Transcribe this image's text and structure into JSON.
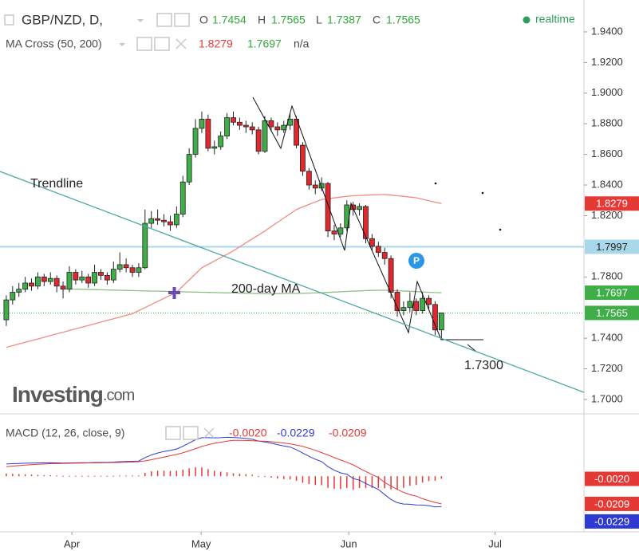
{
  "chart_data": [
    {
      "type": "candlestick",
      "symbol": "GBP/NZD, D,",
      "ohlc_labels": [
        "O",
        "H",
        "L",
        "C"
      ],
      "indicator": "MA Cross (50, 200)",
      "indicator_na": "n/a",
      "status": "realtime",
      "annotations": {
        "trendline": "Trendline",
        "ma_label": "200-day MA",
        "target": "1.7300"
      },
      "logo": [
        "Investing",
        ".com"
      ],
      "up_color": "#3fae49",
      "down_color": "#e0282e",
      "horizontal_line": 1.7997,
      "horizontal_line_color": "#a9d8ea",
      "xlim": [
        -1,
        91.6
      ],
      "xticks": [
        {
          "value": 10.4,
          "label": "Apr"
        },
        {
          "value": 30.9,
          "label": "May"
        },
        {
          "value": 54.3,
          "label": "Jun"
        },
        {
          "value": 77.5,
          "label": "Jul"
        }
      ],
      "ylim": [
        1.6906,
        1.9608
      ],
      "yticks": [
        {
          "value": 1.7,
          "label": "1.7000"
        },
        {
          "value": 1.72,
          "label": "1.7200"
        },
        {
          "value": 1.74,
          "label": "1.7400"
        },
        {
          "value": 1.78,
          "label": "1.7800"
        },
        {
          "value": 1.82,
          "label": "1.8200"
        },
        {
          "value": 1.84,
          "label": "1.8400"
        },
        {
          "value": 1.86,
          "label": "1.8600"
        },
        {
          "value": 1.88,
          "label": "1.8800"
        },
        {
          "value": 1.9,
          "label": "1.9000"
        },
        {
          "value": 1.92,
          "label": "1.9200"
        },
        {
          "value": 1.94,
          "label": "1.9400"
        }
      ],
      "grid": false,
      "open": [
        1.752,
        1.765,
        1.77,
        1.772,
        1.776,
        1.774,
        1.78,
        1.777,
        1.779,
        1.774,
        1.772,
        1.783,
        1.778,
        1.78,
        1.776,
        1.783,
        1.781,
        1.778,
        1.785,
        1.788,
        1.786,
        1.783,
        1.786,
        1.815,
        1.818,
        1.817,
        1.816,
        1.814,
        1.821,
        1.842,
        1.86,
        1.877,
        1.883,
        1.864,
        1.865,
        1.872,
        1.884,
        1.881,
        1.879,
        1.878,
        1.876,
        1.862,
        1.882,
        1.878,
        1.876,
        1.879,
        1.883,
        1.866,
        1.849,
        1.84,
        1.838,
        1.841,
        1.81,
        1.808,
        1.812,
        1.827,
        1.824,
        1.826,
        1.805,
        1.8,
        1.796,
        1.792,
        1.77,
        1.758,
        1.76,
        1.764,
        1.758,
        1.766,
        1.762,
        1.7454
      ],
      "high": [
        1.768,
        1.774,
        1.776,
        1.78,
        1.779,
        1.783,
        1.782,
        1.783,
        1.781,
        1.777,
        1.787,
        1.785,
        1.784,
        1.782,
        1.788,
        1.785,
        1.783,
        1.79,
        1.796,
        1.792,
        1.788,
        1.789,
        1.824,
        1.823,
        1.824,
        1.821,
        1.82,
        1.826,
        1.846,
        1.864,
        1.883,
        1.888,
        1.886,
        1.869,
        1.875,
        1.887,
        1.888,
        1.884,
        1.882,
        1.881,
        1.878,
        1.885,
        1.884,
        1.881,
        1.882,
        1.887,
        1.885,
        1.868,
        1.851,
        1.843,
        1.845,
        1.842,
        1.814,
        1.815,
        1.83,
        1.829,
        1.828,
        1.827,
        1.808,
        1.803,
        1.799,
        1.794,
        1.772,
        1.764,
        1.77,
        1.766,
        1.77,
        1.768,
        1.764,
        1.7565
      ],
      "low": [
        1.748,
        1.762,
        1.767,
        1.77,
        1.771,
        1.772,
        1.774,
        1.775,
        1.77,
        1.766,
        1.77,
        1.775,
        1.776,
        1.773,
        1.774,
        1.778,
        1.775,
        1.776,
        1.783,
        1.783,
        1.78,
        1.78,
        1.785,
        1.812,
        1.814,
        1.813,
        1.81,
        1.812,
        1.819,
        1.84,
        1.858,
        1.874,
        1.862,
        1.86,
        1.863,
        1.87,
        1.879,
        1.876,
        1.874,
        1.873,
        1.86,
        1.861,
        1.875,
        1.872,
        1.874,
        1.876,
        1.864,
        1.846,
        1.837,
        1.834,
        1.836,
        1.806,
        1.804,
        1.806,
        1.81,
        1.82,
        1.82,
        1.802,
        1.797,
        1.793,
        1.788,
        1.766,
        1.754,
        1.755,
        1.757,
        1.755,
        1.756,
        1.759,
        1.742,
        1.7387
      ],
      "close": [
        1.765,
        1.77,
        1.772,
        1.776,
        1.774,
        1.78,
        1.777,
        1.779,
        1.774,
        1.772,
        1.783,
        1.778,
        1.78,
        1.776,
        1.783,
        1.781,
        1.778,
        1.785,
        1.788,
        1.786,
        1.783,
        1.786,
        1.815,
        1.818,
        1.817,
        1.816,
        1.814,
        1.821,
        1.842,
        1.86,
        1.877,
        1.883,
        1.864,
        1.865,
        1.872,
        1.884,
        1.881,
        1.879,
        1.878,
        1.876,
        1.862,
        1.882,
        1.878,
        1.876,
        1.879,
        1.883,
        1.866,
        1.849,
        1.84,
        1.838,
        1.841,
        1.81,
        1.808,
        1.812,
        1.827,
        1.824,
        1.826,
        1.805,
        1.8,
        1.796,
        1.792,
        1.77,
        1.758,
        1.76,
        1.764,
        1.758,
        1.766,
        1.762,
        1.7454,
        1.7565
      ],
      "series": [
        {
          "color": "#f28b82",
          "tag_color": "#e53935",
          "values": [
            1.734,
            1.7351,
            1.7362,
            1.7373,
            1.7384,
            1.7395,
            1.7406,
            1.7417,
            1.7428,
            1.7439,
            1.745,
            1.7461,
            1.7472,
            1.7483,
            1.7494,
            1.7505,
            1.7516,
            1.7527,
            1.7538,
            1.7549,
            1.756,
            1.758,
            1.76,
            1.762,
            1.764,
            1.766,
            1.768,
            1.77,
            1.774,
            1.778,
            1.782,
            1.786,
            1.7882,
            1.7904,
            1.7926,
            1.7948,
            1.797,
            1.7996,
            1.8022,
            1.8048,
            1.8074,
            1.81,
            1.8128,
            1.8156,
            1.8184,
            1.8212,
            1.824,
            1.8257,
            1.8273,
            1.829,
            1.8306,
            1.8311,
            1.8316,
            1.8321,
            1.8326,
            1.833,
            1.8332,
            1.8334,
            1.8336,
            1.8337,
            1.8338,
            1.8334,
            1.833,
            1.8326,
            1.8321,
            1.8317,
            1.8307,
            1.8297,
            1.8288,
            1.8279
          ]
        },
        {
          "color": "#8cc084",
          "tag_color": "#3fae49",
          "values": [
            null,
            null,
            null,
            null,
            null,
            null,
            null,
            null,
            null,
            1.7722,
            1.7721,
            1.772,
            1.7719,
            1.7718,
            1.7717,
            1.7716,
            1.7715,
            1.7714,
            1.7713,
            1.7712,
            1.7711,
            1.771,
            1.7709,
            1.7708,
            1.7707,
            1.7706,
            1.7705,
            1.7704,
            1.7703,
            1.7702,
            1.7701,
            1.77,
            1.7699,
            1.7698,
            1.7697,
            1.7696,
            1.7695,
            1.7694,
            1.7693,
            1.7692,
            1.7691,
            1.769,
            1.769,
            1.7691,
            1.7691,
            1.7692,
            1.7692,
            1.7693,
            1.7694,
            1.7695,
            1.7697,
            1.7699,
            1.7701,
            1.7703,
            1.7705,
            1.7707,
            1.7709,
            1.7711,
            1.7712,
            1.7713,
            1.7713,
            1.7712,
            1.771,
            1.7708,
            1.7706,
            1.7704,
            1.7702,
            1.77,
            1.7698,
            1.7697
          ]
        }
      ]
    },
    {
      "type": "macd",
      "title": "MACD (12, 26, close, 9)",
      "readout": [
        "-0.0020",
        "-0.0229",
        "-0.0209"
      ],
      "ylim": [
        -0.042,
        0.047
      ],
      "series": [
        {
          "color": "#e53935",
          "values": [
            0.002,
            0.0018,
            0.0016,
            0.0014,
            0.0012,
            0.001,
            0.0008,
            0.0007,
            0.0005,
            0.0003,
            0.0003,
            0.0003,
            0.0003,
            0.0002,
            0.0003,
            0.0003,
            0.0002,
            0.0003,
            0.0005,
            0.0005,
            0.0005,
            0.0005,
            0.0025,
            0.0036,
            0.0041,
            0.0042,
            0.004,
            0.0041,
            0.0049,
            0.0059,
            0.0067,
            0.0066,
            0.0053,
            0.0041,
            0.0034,
            0.0029,
            0.0022,
            0.0019,
            0.0015,
            0.0011,
            0.0,
            -0.0005,
            -0.0011,
            -0.0018,
            -0.0022,
            -0.0024,
            -0.0035,
            -0.005,
            -0.006,
            -0.0067,
            -0.0068,
            -0.0088,
            -0.0095,
            -0.0097,
            -0.009,
            -0.0103,
            -0.009,
            -0.009,
            -0.009,
            -0.009,
            -0.0091,
            -0.01,
            -0.01,
            -0.0088,
            -0.0072,
            -0.0067,
            -0.0048,
            -0.0037,
            -0.0034,
            -0.002
          ]
        },
        {
          "color": "#2f3bd0",
          "values": [
            0.0092,
            0.0094,
            0.0096,
            0.0098,
            0.0099,
            0.01,
            0.01,
            0.0101,
            0.01,
            0.0099,
            0.01,
            0.0101,
            0.0102,
            0.0102,
            0.0103,
            0.0104,
            0.0104,
            0.0106,
            0.0109,
            0.0111,
            0.0112,
            0.0114,
            0.014,
            0.016,
            0.0175,
            0.0186,
            0.0194,
            0.0205,
            0.0225,
            0.025,
            0.0275,
            0.029,
            0.029,
            0.0289,
            0.029,
            0.0293,
            0.0292,
            0.0289,
            0.0284,
            0.0278,
            0.0265,
            0.0258,
            0.0249,
            0.0238,
            0.0228,
            0.022,
            0.02,
            0.0175,
            0.015,
            0.0128,
            0.011,
            0.0072,
            0.0045,
            0.0025,
            0.0015,
            -0.0018,
            -0.003,
            -0.0055,
            -0.0078,
            -0.01,
            -0.0139,
            -0.0175,
            -0.02,
            -0.021,
            -0.0212,
            -0.0217,
            -0.0218,
            -0.0222,
            -0.0232,
            -0.0229
          ]
        },
        {
          "color": "#e53935",
          "values": [
            0.0072,
            0.0076,
            0.008,
            0.0084,
            0.0087,
            0.009,
            0.0092,
            0.0094,
            0.0095,
            0.0096,
            0.0097,
            0.0098,
            0.0099,
            0.01,
            0.01,
            0.0101,
            0.0102,
            0.0103,
            0.0104,
            0.0106,
            0.0107,
            0.0109,
            0.0115,
            0.0124,
            0.0134,
            0.0144,
            0.0154,
            0.0164,
            0.0176,
            0.0191,
            0.0208,
            0.0224,
            0.0237,
            0.0248,
            0.0256,
            0.0264,
            0.027,
            0.027,
            0.0269,
            0.0267,
            0.0265,
            0.0263,
            0.026,
            0.0256,
            0.025,
            0.0244,
            0.0235,
            0.0225,
            0.021,
            0.0195,
            0.0178,
            0.016,
            0.014,
            0.0122,
            0.0105,
            0.0085,
            0.006,
            0.0035,
            0.0012,
            -0.001,
            -0.0048,
            -0.0075,
            -0.01,
            -0.0122,
            -0.014,
            -0.015,
            -0.017,
            -0.0185,
            -0.0198,
            -0.0209
          ]
        }
      ]
    }
  ]
}
